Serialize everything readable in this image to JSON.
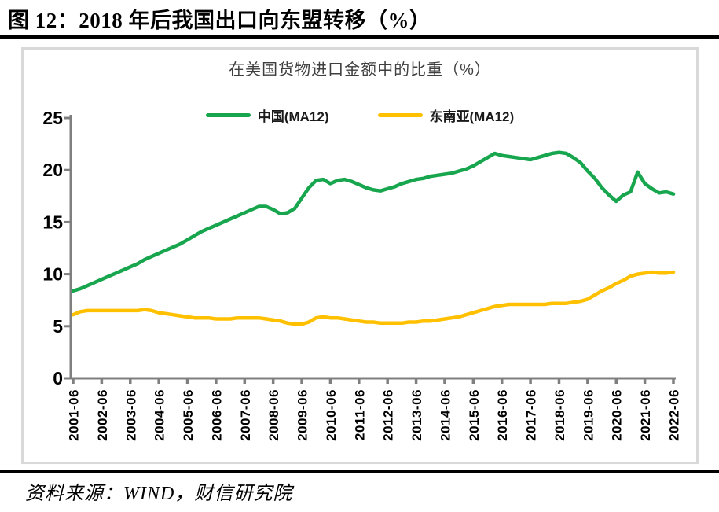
{
  "page": {
    "title": "图 12：2018 年后我国出口向东盟转移（%）",
    "source": "资料来源：WIND，财信研究院"
  },
  "chart": {
    "title": "在美国货物进口金额中的比重（%）"
  },
  "colors": {
    "china_line": "#17A64E",
    "sea_line": "#FFC000",
    "axis": "#7F7F7F",
    "panel_border": "#D9D9D9",
    "rule": "#000000"
  },
  "chart_data": {
    "type": "line",
    "title": "在美国货物进口金额中的比重（%）",
    "x_start": "2001-06",
    "x_end": "2022-06",
    "x_step_months": 3,
    "x_tick_labels": [
      "2001-06",
      "2002-06",
      "2003-06",
      "2004-06",
      "2005-06",
      "2006-06",
      "2007-06",
      "2008-06",
      "2009-06",
      "2010-06",
      "2011-06",
      "2012-06",
      "2013-06",
      "2014-06",
      "2015-06",
      "2016-06",
      "2017-06",
      "2018-06",
      "2019-06",
      "2020-06",
      "2021-06",
      "2022-06"
    ],
    "ylim": [
      0,
      25
    ],
    "yticks": [
      0,
      5,
      10,
      15,
      20,
      25
    ],
    "grid": false,
    "legend_position": "top",
    "series": [
      {
        "name": "中国(MA12)",
        "color": "#17A64E",
        "values": [
          8.4,
          8.6,
          8.9,
          9.2,
          9.5,
          9.8,
          10.1,
          10.4,
          10.7,
          11.0,
          11.4,
          11.7,
          12.0,
          12.3,
          12.6,
          12.9,
          13.3,
          13.7,
          14.1,
          14.4,
          14.7,
          15.0,
          15.3,
          15.6,
          15.9,
          16.2,
          16.5,
          16.5,
          16.2,
          15.8,
          15.9,
          16.3,
          17.3,
          18.3,
          19.0,
          19.1,
          18.7,
          19.0,
          19.1,
          18.9,
          18.6,
          18.3,
          18.1,
          18.0,
          18.2,
          18.4,
          18.7,
          18.9,
          19.1,
          19.2,
          19.4,
          19.5,
          19.6,
          19.7,
          19.9,
          20.1,
          20.4,
          20.8,
          21.2,
          21.6,
          21.4,
          21.3,
          21.2,
          21.1,
          21.0,
          21.2,
          21.4,
          21.6,
          21.7,
          21.6,
          21.2,
          20.7,
          19.9,
          19.2,
          18.3,
          17.6,
          17.0,
          17.6,
          17.9,
          19.8,
          18.7,
          18.2,
          17.8,
          17.9,
          17.7
        ]
      },
      {
        "name": "东南亚(MA12)",
        "color": "#FFC000",
        "values": [
          6.1,
          6.4,
          6.5,
          6.5,
          6.5,
          6.5,
          6.5,
          6.5,
          6.5,
          6.5,
          6.6,
          6.5,
          6.3,
          6.2,
          6.1,
          6.0,
          5.9,
          5.8,
          5.8,
          5.8,
          5.7,
          5.7,
          5.7,
          5.8,
          5.8,
          5.8,
          5.8,
          5.7,
          5.6,
          5.5,
          5.3,
          5.2,
          5.2,
          5.4,
          5.8,
          5.9,
          5.8,
          5.8,
          5.7,
          5.6,
          5.5,
          5.4,
          5.4,
          5.3,
          5.3,
          5.3,
          5.3,
          5.4,
          5.4,
          5.5,
          5.5,
          5.6,
          5.7,
          5.8,
          5.9,
          6.1,
          6.3,
          6.5,
          6.7,
          6.9,
          7.0,
          7.1,
          7.1,
          7.1,
          7.1,
          7.1,
          7.1,
          7.2,
          7.2,
          7.2,
          7.3,
          7.4,
          7.6,
          8.0,
          8.4,
          8.7,
          9.1,
          9.4,
          9.8,
          10.0,
          10.1,
          10.2,
          10.1,
          10.1,
          10.2
        ]
      }
    ]
  }
}
